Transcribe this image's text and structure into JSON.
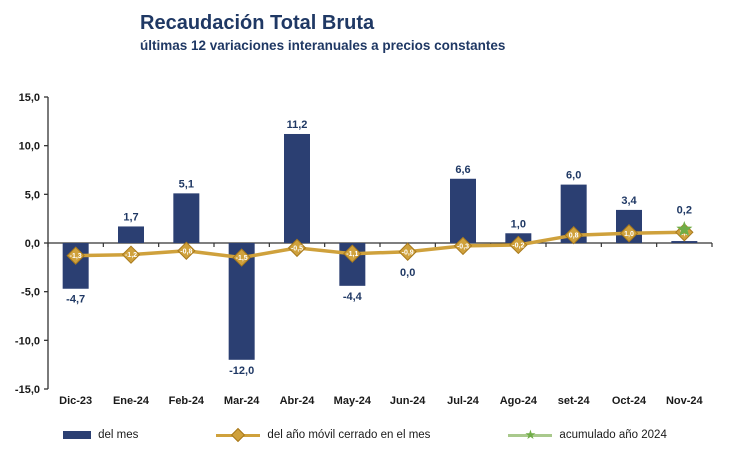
{
  "title": "Recaudación Total Bruta",
  "subtitle": "últimas 12 variaciones interanuales a precios constantes",
  "colors": {
    "navy": "#1f3864",
    "bar": "#2b3f72",
    "gold": "#cfa13c",
    "gold_border": "#a8791c",
    "green": "#70ad47",
    "green_light": "#a9c98c",
    "axis": "#333333",
    "tick_text": "#1a1a1a",
    "marker_text": "#ffffff"
  },
  "chart_data": {
    "type": "bar",
    "title": "Recaudación Total Bruta",
    "subtitle": "últimas 12 variaciones interanuales a precios constantes",
    "categories": [
      "Dic-23",
      "Ene-24",
      "Feb-24",
      "Mar-24",
      "Abr-24",
      "May-24",
      "Jun-24",
      "Jul-24",
      "Ago-24",
      "set-24",
      "Oct-24",
      "Nov-24"
    ],
    "series": [
      {
        "name": "del mes",
        "type": "bar",
        "values": [
          -4.7,
          1.7,
          5.1,
          -12.0,
          11.2,
          -4.4,
          0.0,
          6.6,
          1.0,
          6.0,
          3.4,
          0.2
        ],
        "labels": [
          "-4,7",
          "1,7",
          "5,1",
          "-12,0",
          "11,2",
          "-4,4",
          "0,0",
          "6,6",
          "1,0",
          "6,0",
          "3,4",
          "0,2"
        ]
      },
      {
        "name": "del año móvil cerrado en el mes",
        "type": "line",
        "values": [
          -1.3,
          -1.2,
          -0.8,
          -1.5,
          -0.5,
          -1.1,
          -0.9,
          -0.3,
          -0.2,
          0.8,
          1.0,
          1.1
        ],
        "labels": [
          "-1,3",
          "-1,2",
          "-0,8",
          "-1,5",
          "-0,5",
          "-1,1",
          "-0,9",
          "-0,3",
          "-0,2",
          "0,8",
          "1,0",
          "1,1"
        ]
      },
      {
        "name": "acumulado año 2024",
        "type": "point",
        "category": "Nov-24",
        "value": 1.4,
        "label": ""
      }
    ],
    "ylim": [
      -15,
      15
    ],
    "ytick_values": [
      15,
      10,
      5,
      0,
      -5,
      -10,
      -15
    ],
    "ytick_labels": [
      "15,0",
      "10,0",
      "5,0",
      "0,0",
      "-5,0",
      "-10,0",
      "-15,0"
    ],
    "grid": false,
    "legend_position": "bottom"
  },
  "legend": {
    "items": [
      {
        "label": "del mes",
        "marker": "bar"
      },
      {
        "label": "del año móvil cerrado en el mes",
        "marker": "line-diamond"
      },
      {
        "label": "acumulado año 2024",
        "marker": "line-star"
      }
    ]
  }
}
